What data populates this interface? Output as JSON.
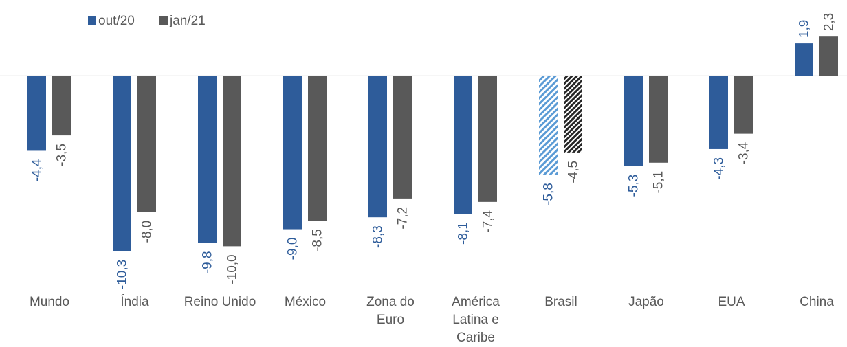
{
  "chart_data": {
    "type": "bar",
    "categories": [
      "Mundo",
      "Índia",
      "Reino Unido",
      "México",
      "Zona do\nEuro",
      "América\nLatina e\nCaribe",
      "Brasil",
      "Japão",
      "EUA",
      "China"
    ],
    "series": [
      {
        "name": "out/20",
        "color": "#2e5c9a",
        "values": [
          -4.4,
          -10.3,
          -9.8,
          -9.0,
          -8.3,
          -8.1,
          -5.8,
          -5.3,
          -4.3,
          1.9
        ],
        "value_labels": [
          "-4,4",
          "-10,3",
          "-9,8",
          "-9,0",
          "-8,3",
          "-8,1",
          "-5,8",
          "-5,3",
          "-4,3",
          "1,9"
        ]
      },
      {
        "name": "jan/21",
        "color": "#595959",
        "values": [
          -3.5,
          -8.0,
          -10.0,
          -8.5,
          -7.2,
          -7.4,
          -4.5,
          -5.1,
          -3.4,
          2.3
        ],
        "value_labels": [
          "-3,5",
          "-8,0",
          "-10,0",
          "-8,5",
          "-7,2",
          "-7,4",
          "-4,5",
          "-5,1",
          "-3,4",
          "2,3"
        ]
      }
    ],
    "hatch_category": "Brasil",
    "ylim": [
      -12,
      4
    ],
    "legend": "top-left"
  }
}
